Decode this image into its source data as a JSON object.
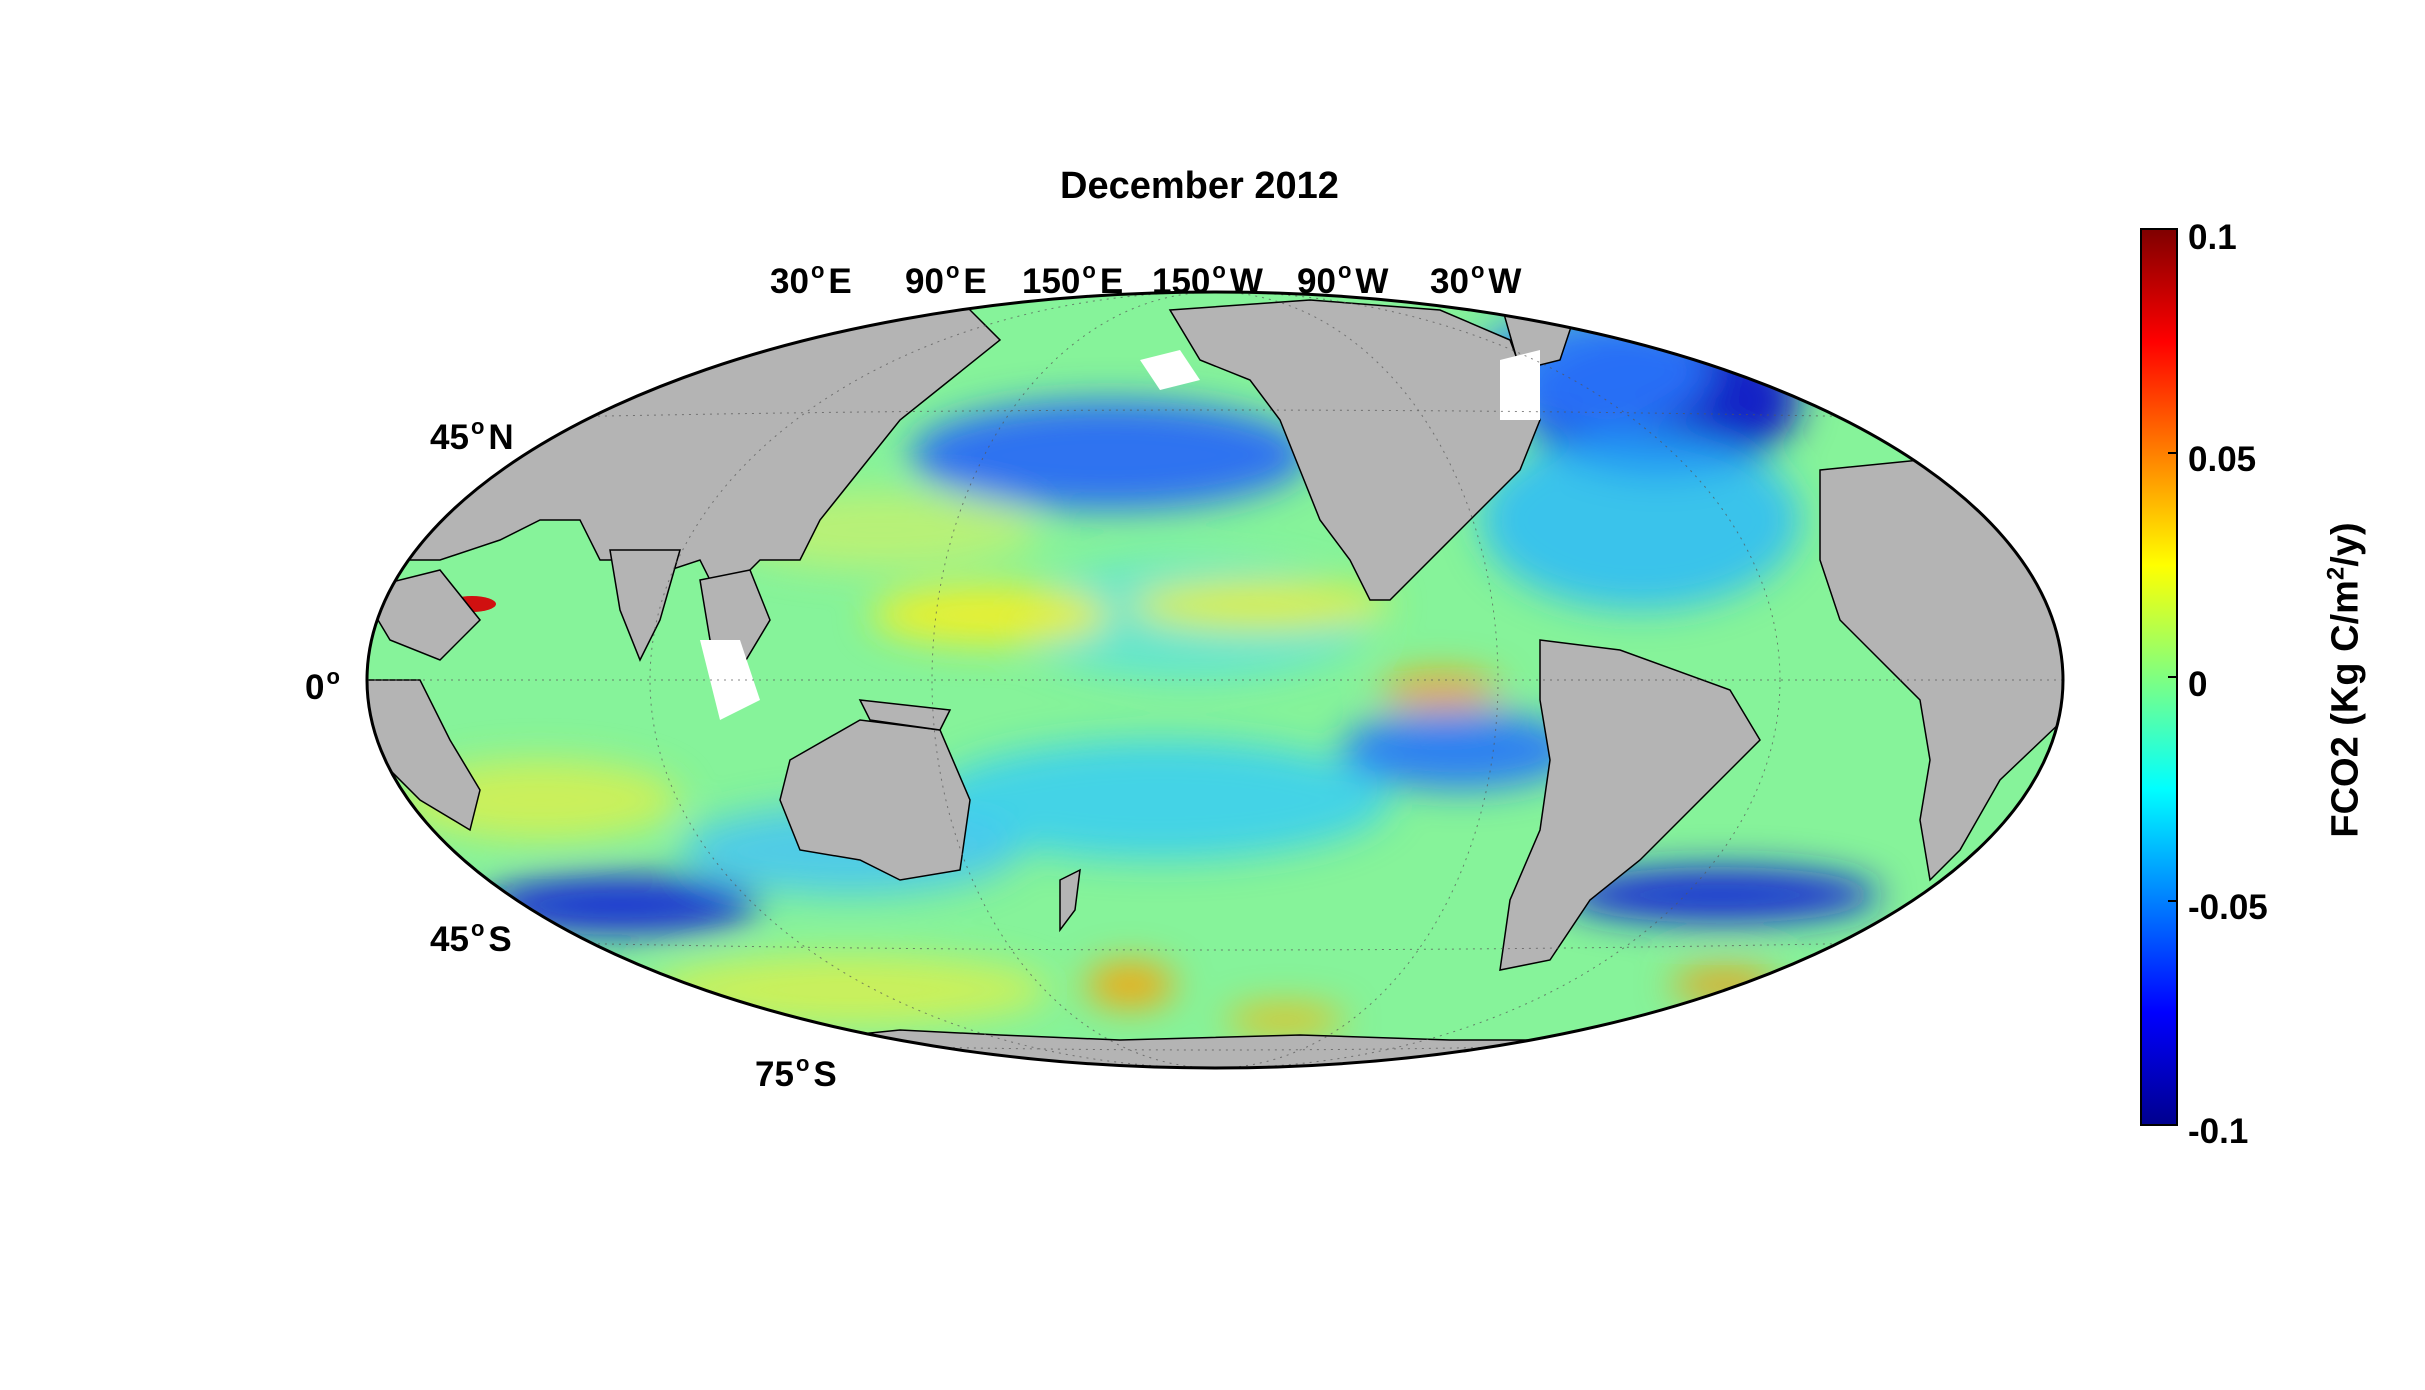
{
  "title": "December 2012",
  "lon_labels": [
    {
      "deg": "30",
      "dir": "E"
    },
    {
      "deg": "90",
      "dir": "E"
    },
    {
      "deg": "150",
      "dir": "E"
    },
    {
      "deg": "150",
      "dir": "W"
    },
    {
      "deg": "90",
      "dir": "W"
    },
    {
      "deg": "30",
      "dir": "W"
    }
  ],
  "lat_labels": [
    {
      "deg": "45",
      "dir": "N"
    },
    {
      "deg": "0",
      "dir": ""
    },
    {
      "deg": "45",
      "dir": "S"
    },
    {
      "deg": "75",
      "dir": "S"
    }
  ],
  "colorbar": {
    "label_main": "FCO2 (Kg C/m",
    "label_sup": "2",
    "label_end": "/y)",
    "ticks": [
      "0.1",
      "0.05",
      "0",
      "-0.05",
      "-0.1"
    ],
    "range": [
      -0.1,
      0.1
    ],
    "colormap": "jet"
  },
  "colors": {
    "land": "#b4b4b4",
    "ocean_base": "#7ff0a0",
    "no_data": "#ffffff"
  },
  "map": {
    "projection": "Mollweide",
    "central_meridian": "180",
    "variable": "air-sea CO2 flux"
  }
}
